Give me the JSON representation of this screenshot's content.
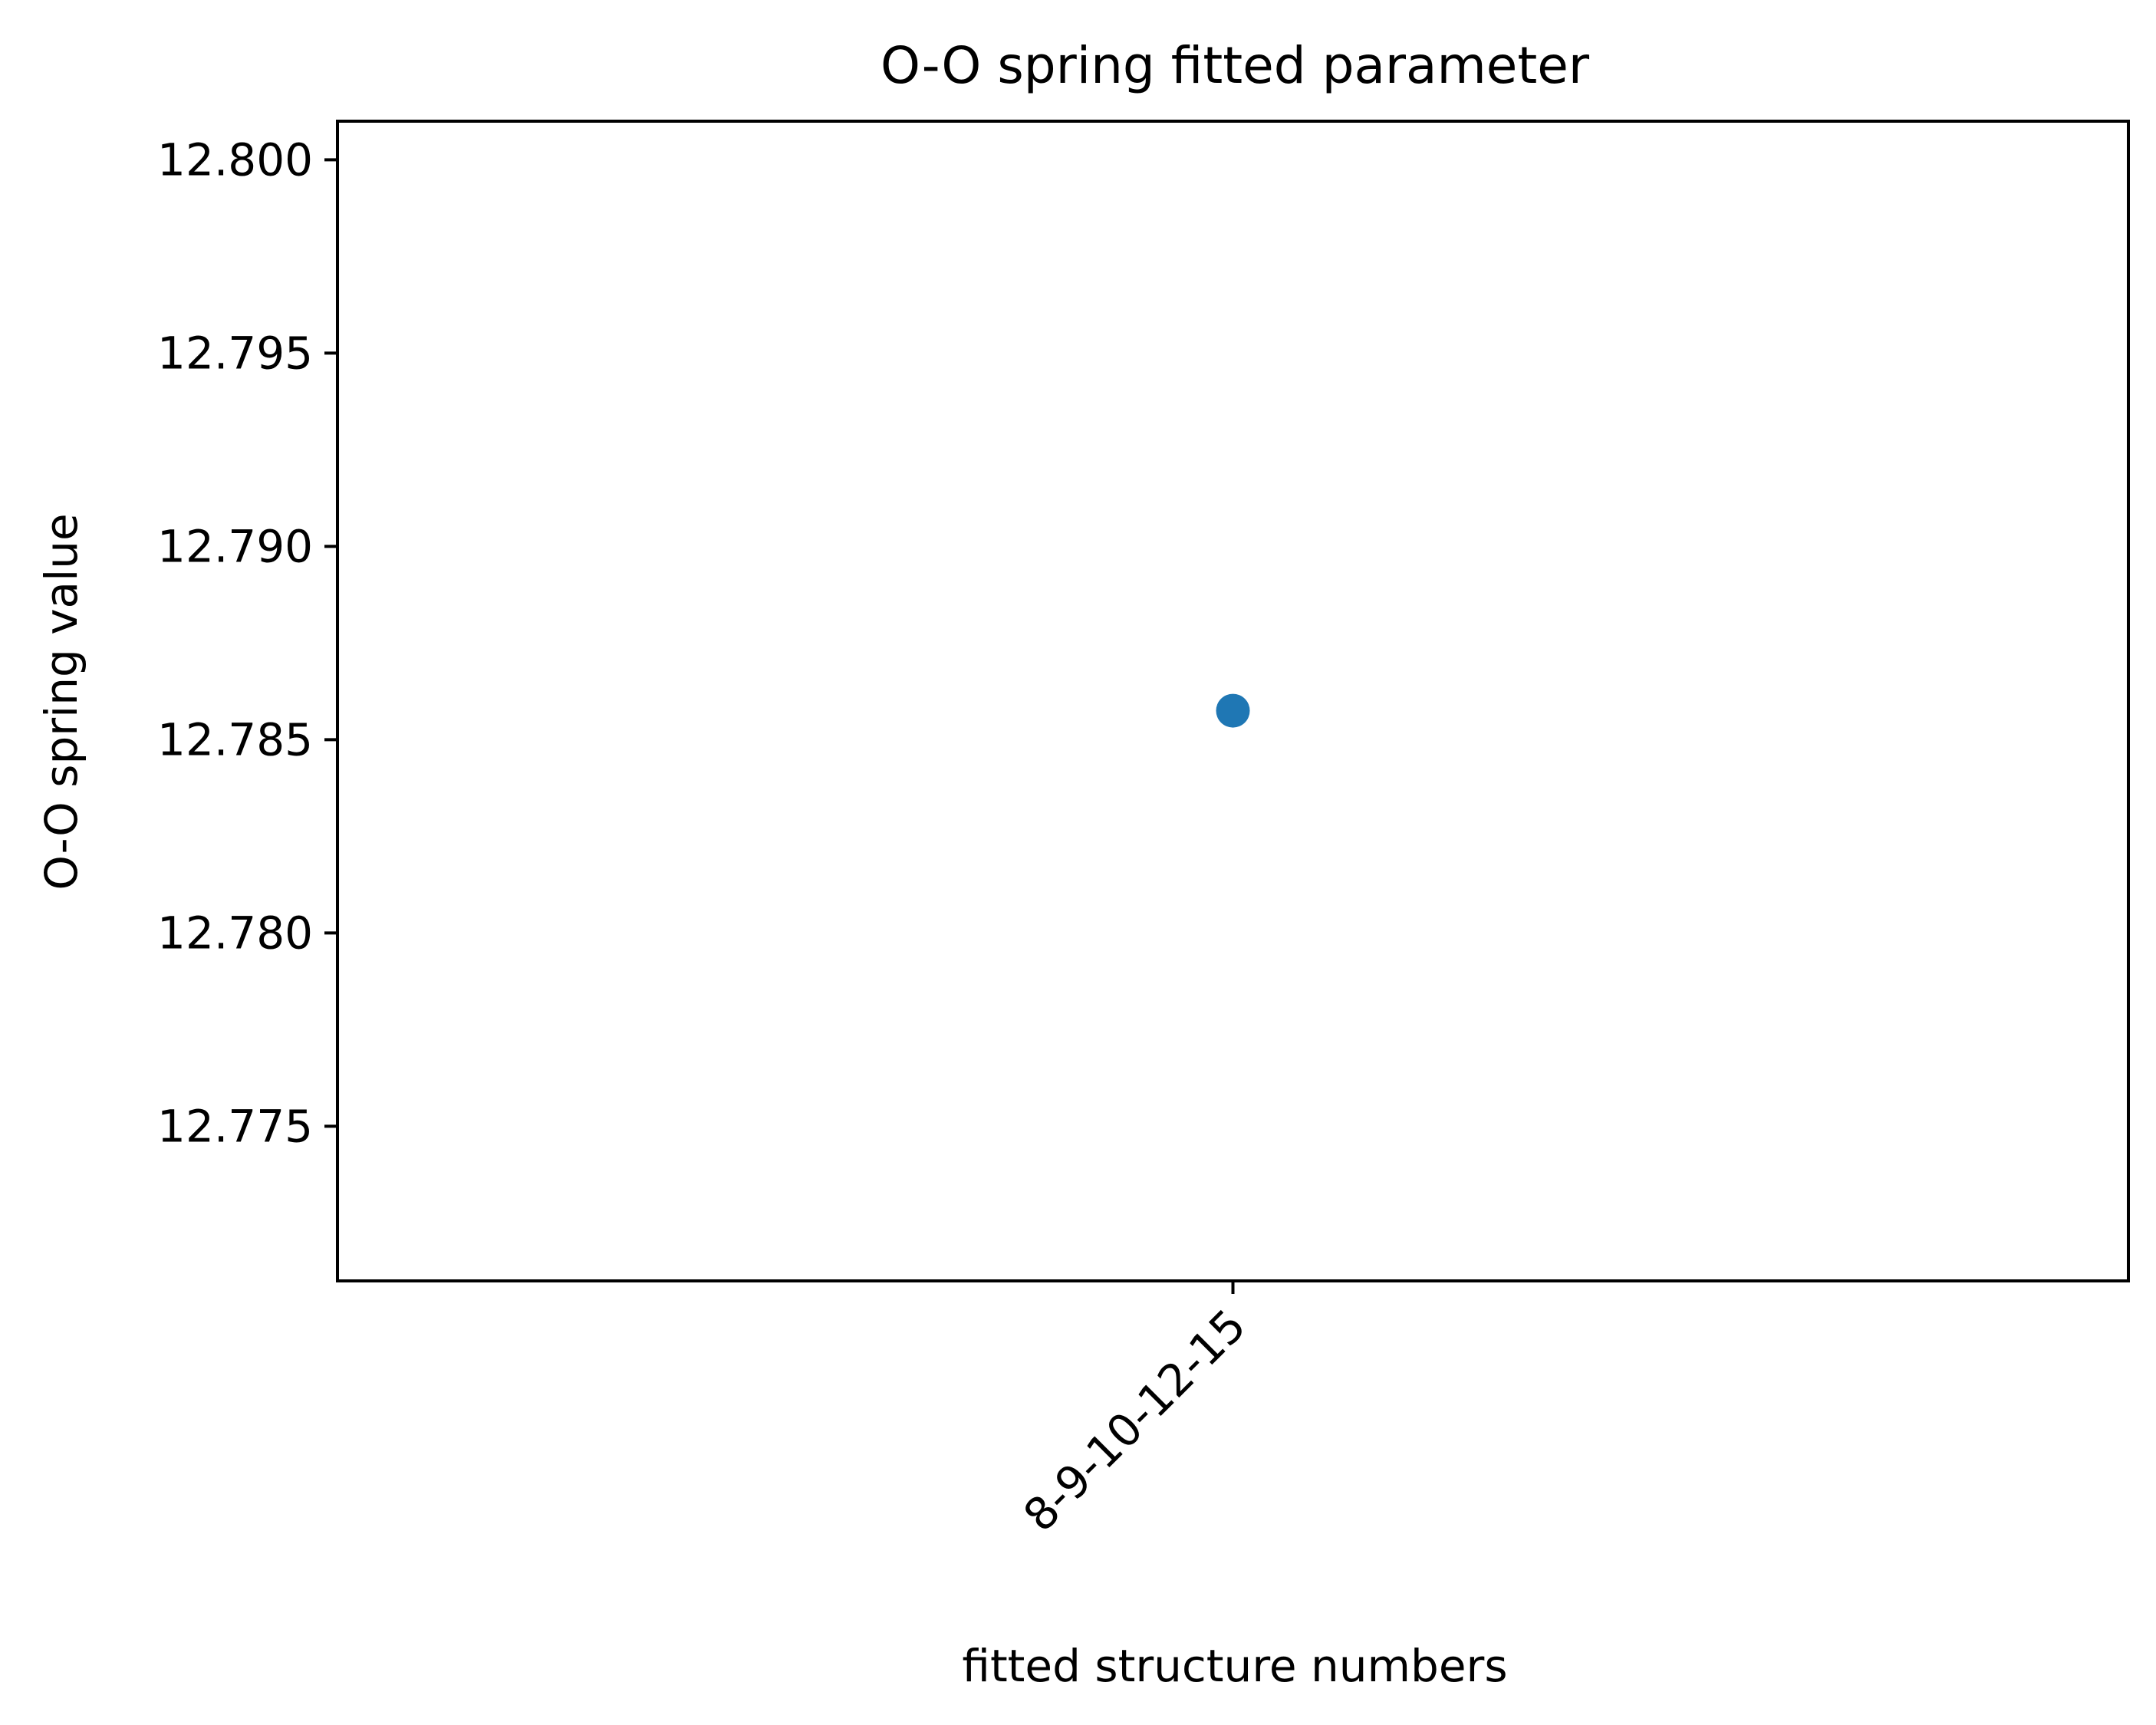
{
  "chart_data": {
    "type": "scatter",
    "title": "O-O spring fitted parameter",
    "xlabel": "fitted structure numbers",
    "ylabel": "O-O spring value",
    "categories": [
      "8-9-10-12-15"
    ],
    "series": [
      {
        "values": [
          12.78575
        ],
        "color": "#1f77b4"
      }
    ],
    "ylim": [
      12.771,
      12.801
    ],
    "yticks": [
      12.775,
      12.78,
      12.785,
      12.79,
      12.795,
      12.8
    ],
    "ytick_labels": [
      "12.775",
      "12.780",
      "12.785",
      "12.790",
      "12.795",
      "12.800"
    ],
    "xtick_rotation_deg": 45,
    "grid": false,
    "legend": "none"
  }
}
